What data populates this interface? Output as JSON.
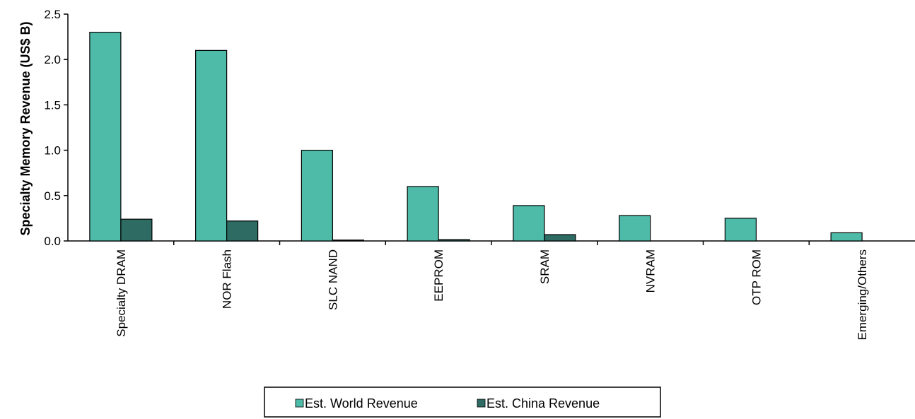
{
  "chart_data": {
    "type": "bar",
    "categories": [
      "Specialty DRAM",
      "NOR Flash",
      "SLC NAND",
      "EEPROM",
      "SRAM",
      "NVRAM",
      "OTP ROM",
      "Emerging/Others"
    ],
    "series": [
      {
        "name": "Est. World Revenue",
        "values": [
          2.3,
          2.1,
          1.0,
          0.6,
          0.39,
          0.28,
          0.25,
          0.09
        ],
        "color": "#4dbba7"
      },
      {
        "name": "Est. China Revenue",
        "values": [
          0.24,
          0.22,
          0.01,
          0.015,
          0.07,
          0.0,
          0.0,
          0.0
        ],
        "color": "#2d6b63"
      }
    ],
    "ylabel": "Specialty Memory Revenue (US$ B)",
    "xlabel": "",
    "ylim": [
      0,
      2.5
    ],
    "yticks": [
      "0.0",
      "0.5",
      "1.0",
      "1.5",
      "2.0",
      "2.5"
    ],
    "grid": false,
    "legend_position": "bottom"
  }
}
